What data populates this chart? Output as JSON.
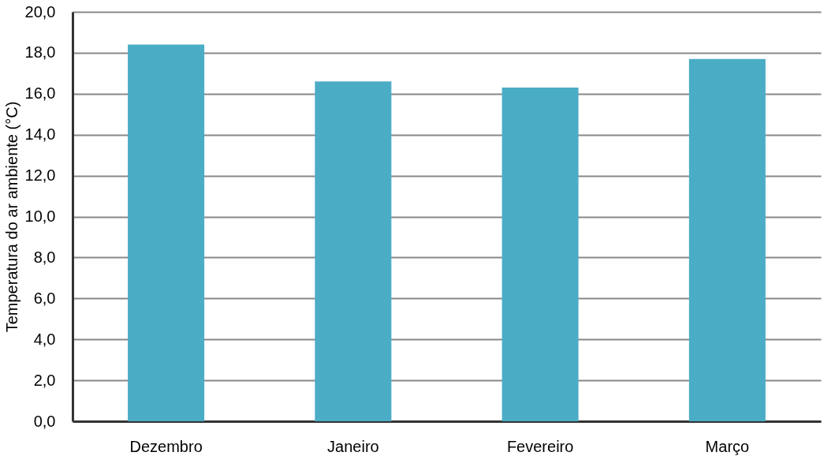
{
  "chart_data": {
    "type": "bar",
    "ylabel": "Temperatura do ar ambiente (°C)",
    "categories": [
      "Dezembro",
      "Janeiro",
      "Fevereiro",
      "Março"
    ],
    "values": [
      18.4,
      16.6,
      16.3,
      17.7
    ],
    "color": "#4bacc6",
    "ylim": [
      0,
      20
    ],
    "yticks": [
      {
        "value": 0,
        "label": "0,0"
      },
      {
        "value": 2,
        "label": "2,0"
      },
      {
        "value": 4,
        "label": "4,0"
      },
      {
        "value": 6,
        "label": "6,0"
      },
      {
        "value": 8,
        "label": "8,0"
      },
      {
        "value": 10,
        "label": "10,0"
      },
      {
        "value": 12,
        "label": "12,0"
      },
      {
        "value": 14,
        "label": "14,0"
      },
      {
        "value": 16,
        "label": "16,0"
      },
      {
        "value": 18,
        "label": "18,0"
      },
      {
        "value": 20,
        "label": "20,0"
      }
    ],
    "grid": "y"
  }
}
